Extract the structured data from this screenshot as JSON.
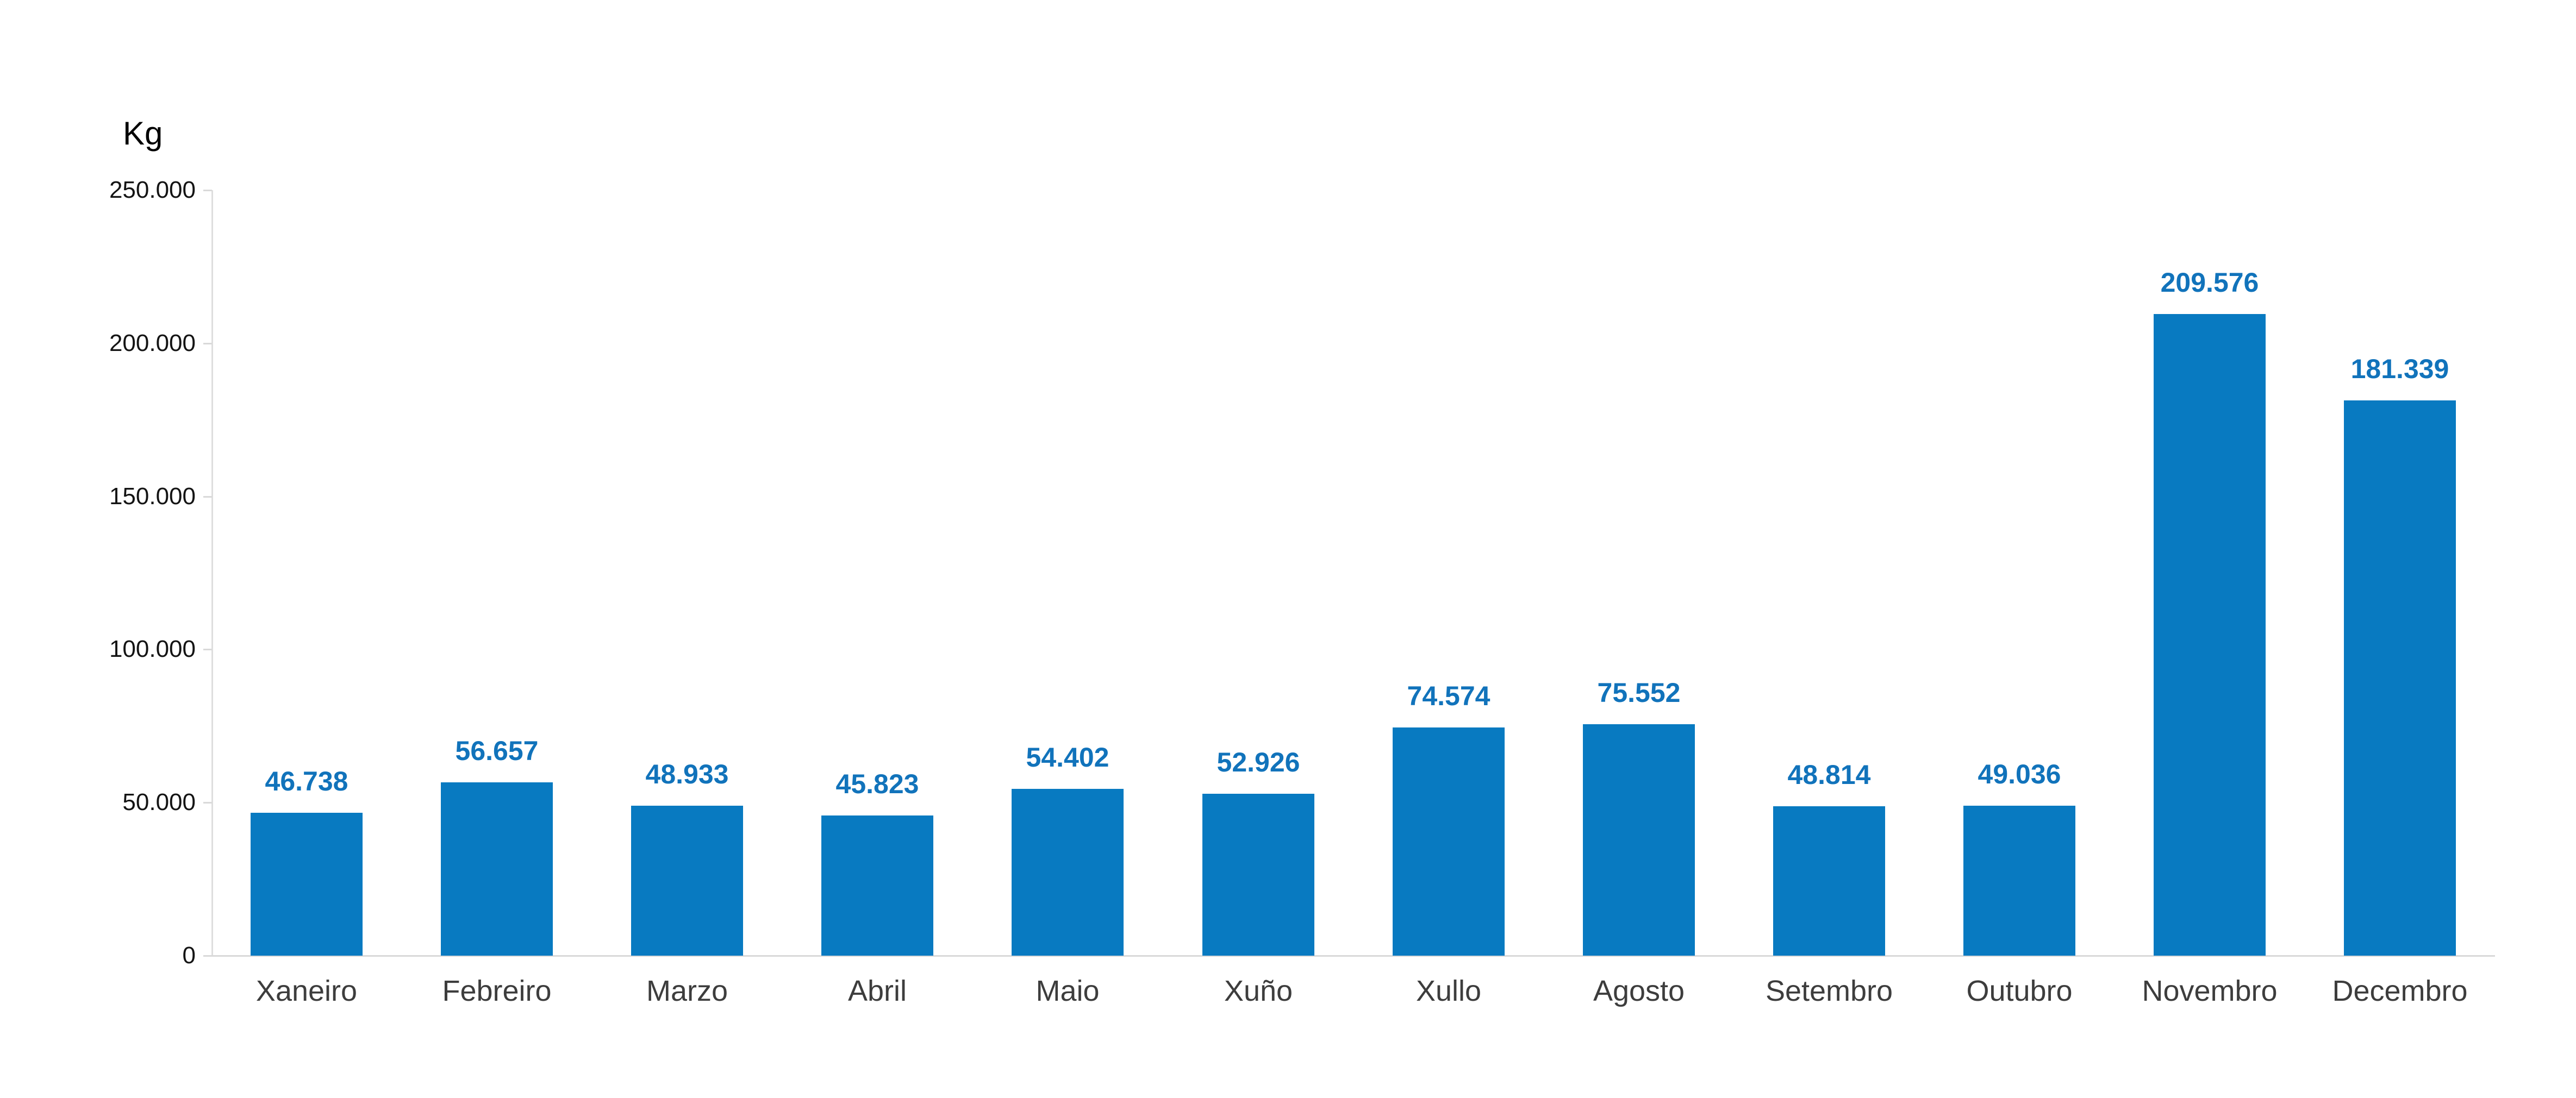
{
  "chart_data": {
    "type": "bar",
    "title": "",
    "xlabel": "",
    "ylabel": "Kg",
    "categories": [
      "Xaneiro",
      "Febreiro",
      "Marzo",
      "Abril",
      "Maio",
      "Xuño",
      "Xullo",
      "Agosto",
      "Setembro",
      "Outubro",
      "Novembro",
      "Decembro"
    ],
    "values": [
      46738,
      56657,
      48933,
      45823,
      54402,
      52926,
      74574,
      75552,
      48814,
      49036,
      209576,
      181339
    ],
    "value_labels": [
      "46.738",
      "56.657",
      "48.933",
      "45.823",
      "54.402",
      "52.926",
      "74.574",
      "75.552",
      "48.814",
      "49.036",
      "209.576",
      "181.339"
    ],
    "ylim": [
      0,
      250000
    ],
    "ytick_labels_bottom_to_top": [
      "0",
      "50.000",
      "100.000",
      "150.000",
      "200.000",
      "250.000"
    ],
    "grid": false,
    "legend": false,
    "bar_color": "#087ac1",
    "value_label_color": "#1173bb",
    "category_label_color": "#3d3d3d",
    "tick_label_color": "#141414",
    "axis_line_color": "#d9d9d9",
    "background_color": "#ffffff"
  }
}
